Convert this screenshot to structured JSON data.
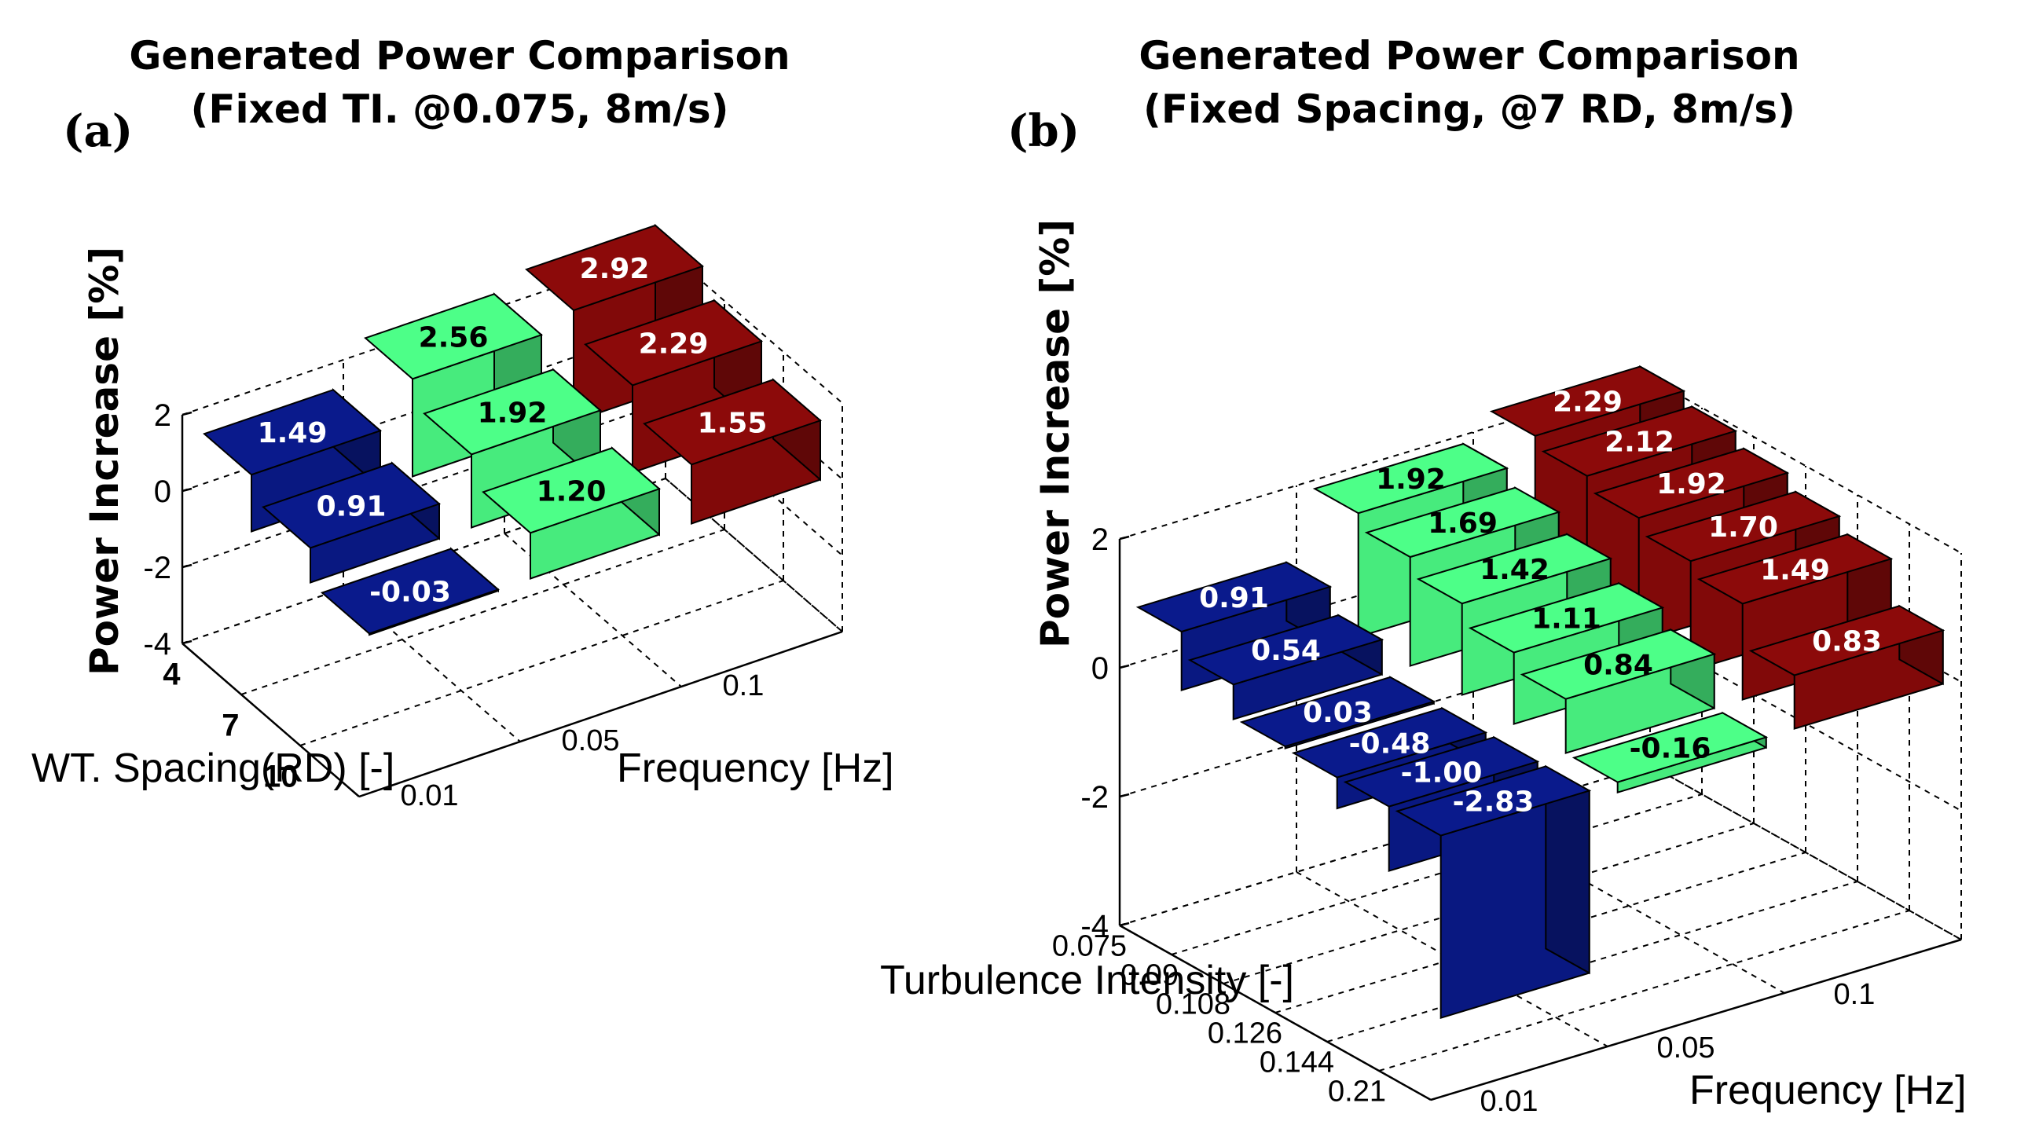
{
  "colors": {
    "low": "#0a1a8c",
    "mid": "#4dff88",
    "high": "#8c0a0a"
  },
  "chart_data": [
    {
      "panel_label": "(a)",
      "type": "bar3d",
      "title_line1": "Generated Power Comparison",
      "title_line2": "(Fixed TI. @0.075, 8m/s)",
      "zlabel": "Power Increase [%]",
      "zticks": [
        "2",
        "0",
        "-2",
        "-4"
      ],
      "zlim": [
        -4,
        2
      ],
      "row_axis_label": "WT. Spacing(RD) [-]",
      "rows": [
        "4",
        "7",
        "10"
      ],
      "col_axis_label": "Frequency [Hz]",
      "cols": [
        "0.01",
        "0.05",
        "0.1"
      ],
      "series": [
        {
          "name": "0.01",
          "values": [
            1.49,
            0.91,
            -0.03
          ],
          "labels": [
            "1.49",
            "0.91",
            "-0.03"
          ]
        },
        {
          "name": "0.05",
          "values": [
            2.56,
            1.92,
            1.2
          ],
          "labels": [
            "2.56",
            "1.92",
            "1.20"
          ]
        },
        {
          "name": "0.1",
          "values": [
            2.92,
            2.29,
            1.55
          ],
          "labels": [
            "2.92",
            "2.29",
            "1.55"
          ]
        }
      ]
    },
    {
      "panel_label": "(b)",
      "type": "bar3d",
      "title_line1": "Generated Power Comparison",
      "title_line2": "(Fixed Spacing, @7 RD, 8m/s)",
      "zlabel": "Power Increase [%]",
      "zticks": [
        "2",
        "0",
        "-2",
        "-4"
      ],
      "zlim": [
        -4,
        2
      ],
      "row_axis_label": "Turbulence Intensity  [-]",
      "rows": [
        "0.075",
        "0.09",
        "0.108",
        "0.126",
        "0.144",
        "0.21"
      ],
      "col_axis_label": "Frequency [Hz]",
      "cols": [
        "0.01",
        "0.05",
        "0.1"
      ],
      "series": [
        {
          "name": "0.01",
          "values": [
            0.91,
            0.54,
            0.03,
            -0.48,
            -1.0,
            -2.83
          ],
          "labels": [
            "0.91",
            "0.54",
            "0.03",
            "-0.48",
            "-1.00",
            "-2.83"
          ]
        },
        {
          "name": "0.05",
          "values": [
            1.92,
            1.69,
            1.42,
            1.11,
            0.84,
            -0.16
          ],
          "labels": [
            "1.92",
            "1.69",
            "1.42",
            "1.11",
            "0.84",
            "-0.16"
          ]
        },
        {
          "name": "0.1",
          "values": [
            2.29,
            2.12,
            1.92,
            1.7,
            1.49,
            0.83
          ],
          "labels": [
            "2.29",
            "2.12",
            "1.92",
            "1.70",
            "1.49",
            "0.83"
          ]
        }
      ]
    }
  ]
}
